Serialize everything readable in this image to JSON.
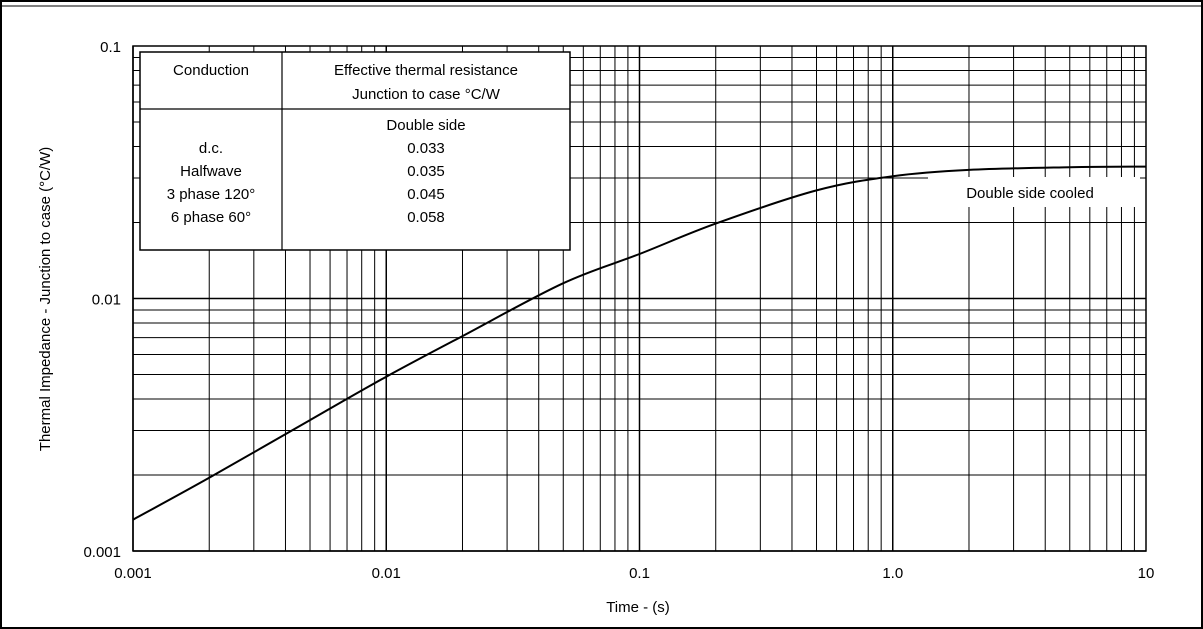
{
  "chart_data": {
    "type": "line",
    "xscale": "log",
    "yscale": "log",
    "xlim": [
      0.001,
      10
    ],
    "ylim": [
      0.001,
      0.1
    ],
    "xlabel": "Time - (s)",
    "ylabel": "Thermal Impedance - Junction to case (°C/W)",
    "x_ticks": [
      "0.001",
      "0.01",
      "0.1",
      "1.0",
      "10"
    ],
    "y_ticks": [
      "0.001",
      "0.01",
      "0.1"
    ],
    "grid": true,
    "series": [
      {
        "name": "Double side cooled",
        "x": [
          0.001,
          0.002,
          0.005,
          0.01,
          0.02,
          0.05,
          0.1,
          0.2,
          0.5,
          1.0,
          2.0,
          5.0,
          10
        ],
        "y": [
          0.00133,
          0.00195,
          0.0033,
          0.0049,
          0.0071,
          0.0115,
          0.015,
          0.0198,
          0.0268,
          0.0305,
          0.0323,
          0.0331,
          0.0333
        ]
      }
    ],
    "annotation": "Double side cooled",
    "table": {
      "header": [
        "Conduction",
        "Effective thermal resistance Junction to case °C/W"
      ],
      "header_line2": "Junction to case °C/W",
      "header_line1": "Effective thermal resistance",
      "subheader": "Double side",
      "rows": [
        {
          "conduction": "d.c.",
          "value": "0.033"
        },
        {
          "conduction": "Halfwave",
          "value": "0.035"
        },
        {
          "conduction": "3 phase 120°",
          "value": "0.045"
        },
        {
          "conduction": "6 phase 60°",
          "value": "0.058"
        }
      ]
    }
  }
}
